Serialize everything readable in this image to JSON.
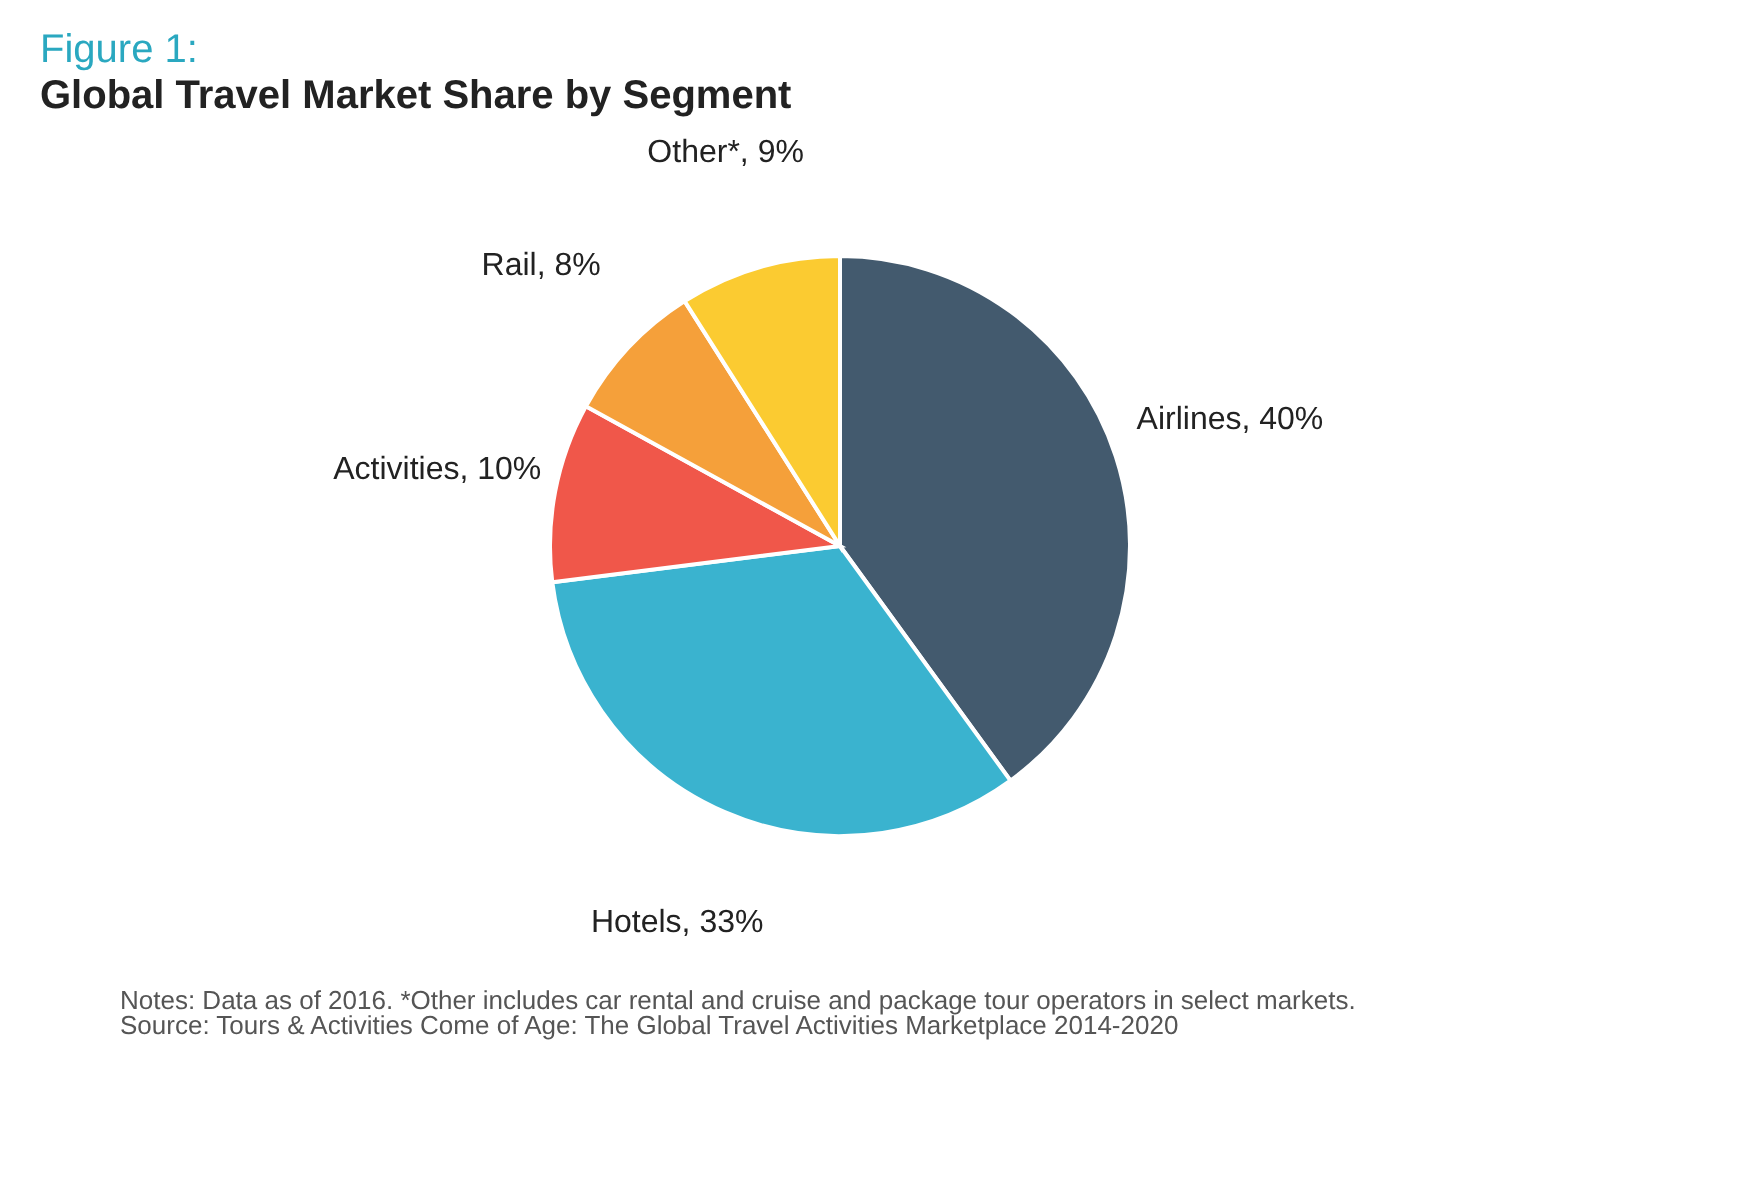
{
  "chart_data": {
    "type": "pie",
    "title": "Figure 1:",
    "subtitle": "Global Travel Market Share by Segment",
    "categories": [
      "Airlines",
      "Hotels",
      "Activities",
      "Rail",
      "Other*"
    ],
    "values": [
      40,
      33,
      10,
      8,
      9
    ],
    "colors": [
      "#435a6e",
      "#3ab3cf",
      "#f0574a",
      "#f5a03a",
      "#fbcb31"
    ],
    "value_labels": [
      "40%",
      "33%",
      "10%",
      "8%",
      "9%"
    ],
    "legend": false,
    "annotations": [
      "Notes: Data as of 2016. *Other includes car rental and cruise and package tour operators in select markets.",
      "Source: Tours & Activities Come of Age: The Global Travel Activities Marketplace 2014-2020"
    ]
  }
}
